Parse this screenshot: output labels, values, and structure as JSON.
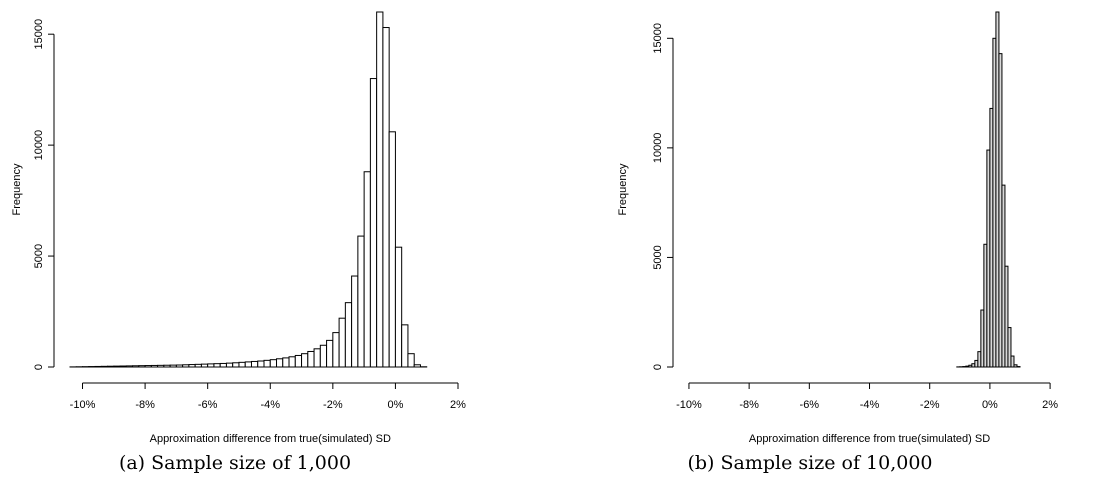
{
  "chart_data": [
    {
      "type": "bar",
      "caption": "(a) Sample size of 1,000",
      "xlabel": "Approximation difference from true(simulated) SD",
      "ylabel": "Frequency",
      "xticks": [
        "-10%",
        "-8%",
        "-6%",
        "-4%",
        "-2%",
        "0%",
        "2%"
      ],
      "xtick_values": [
        -10,
        -8,
        -6,
        -4,
        -2,
        0,
        2
      ],
      "yticks": [
        "0",
        "5000",
        "10000",
        "15000"
      ],
      "ytick_values": [
        0,
        5000,
        10000,
        15000
      ],
      "xlim": [
        -10.4,
        2
      ],
      "ylim": [
        0,
        16000
      ],
      "bin_start": -10.4,
      "bin_width": 0.2,
      "values": [
        5,
        10,
        15,
        20,
        25,
        30,
        35,
        40,
        45,
        50,
        55,
        60,
        65,
        70,
        75,
        80,
        85,
        90,
        100,
        110,
        120,
        130,
        140,
        150,
        160,
        175,
        190,
        210,
        230,
        250,
        270,
        300,
        330,
        370,
        410,
        460,
        520,
        600,
        700,
        820,
        980,
        1200,
        1550,
        2200,
        2900,
        4100,
        5900,
        8800,
        13000,
        16000,
        15300,
        10600,
        5400,
        1900,
        600,
        100,
        10
      ]
    },
    {
      "type": "bar",
      "caption": "(b) Sample size of 10,000",
      "xlabel": "Approximation difference from true(simulated) SD",
      "ylabel": "Frequency",
      "xticks": [
        "-10%",
        "-8%",
        "-6%",
        "-4%",
        "-2%",
        "0%",
        "2%"
      ],
      "xtick_values": [
        -10,
        -8,
        -6,
        -4,
        -2,
        0,
        2
      ],
      "yticks": [
        "0",
        "5000",
        "10000",
        "15000"
      ],
      "ytick_values": [
        0,
        5000,
        10000,
        15000
      ],
      "xlim": [
        -9.4,
        1
      ],
      "ylim": [
        0,
        16200
      ],
      "bin_start": -9.4,
      "bin_width": 0.1,
      "values": [
        0,
        0,
        0,
        0,
        0,
        0,
        0,
        0,
        0,
        0,
        0,
        0,
        0,
        0,
        0,
        0,
        0,
        0,
        0,
        0,
        0,
        0,
        0,
        0,
        0,
        0,
        0,
        0,
        0,
        0,
        0,
        0,
        0,
        0,
        0,
        0,
        0,
        0,
        0,
        0,
        0,
        0,
        0,
        0,
        0,
        0,
        0,
        0,
        0,
        0,
        0,
        0,
        0,
        0,
        0,
        0,
        0,
        0,
        0,
        0,
        0,
        0,
        0,
        0,
        0,
        0,
        0,
        0,
        0,
        0,
        0,
        0,
        0,
        0,
        0,
        0,
        0,
        0,
        0,
        0,
        0,
        0,
        0,
        5,
        10,
        20,
        40,
        80,
        150,
        300,
        700,
        2600,
        5600,
        9900,
        11800,
        15000,
        16200,
        14300,
        8300,
        4600,
        1800,
        500,
        100,
        20
      ]
    }
  ]
}
